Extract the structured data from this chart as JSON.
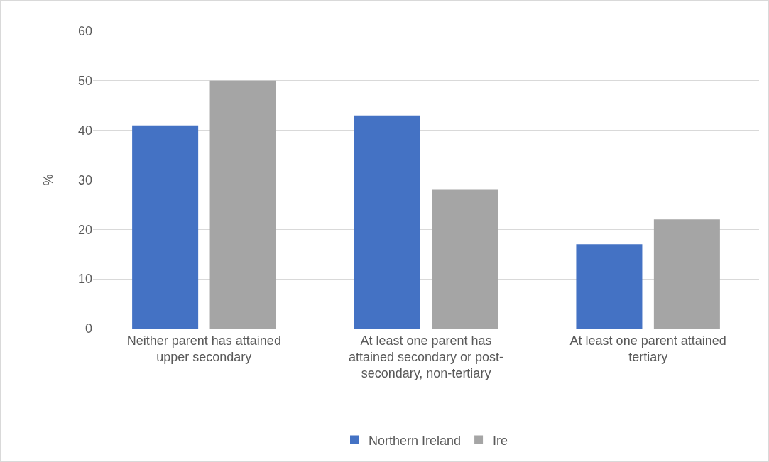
{
  "chart_data": {
    "type": "bar",
    "ylabel": "%",
    "categories": [
      "Neither parent has attained upper secondary",
      "At least one parent has attained secondary or post-secondary, non-tertiary",
      "At least one parent attained tertiary"
    ],
    "series": [
      {
        "name": "Northern Ireland",
        "color": "#4472c4",
        "values": [
          41,
          43,
          17
        ]
      },
      {
        "name": "Ire",
        "color": "#a5a5a5",
        "values": [
          50,
          28,
          22
        ]
      }
    ],
    "ylim": [
      0,
      60
    ],
    "yticks": [
      0,
      10,
      20,
      30,
      40,
      50,
      60
    ],
    "grid": "y",
    "legend": "bottom"
  }
}
